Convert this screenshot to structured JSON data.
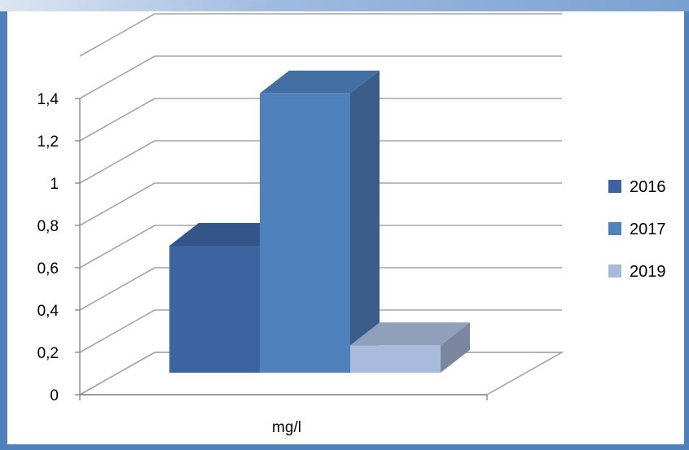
{
  "chart_data": {
    "type": "bar",
    "style": "3d-column",
    "categories": [
      "mg/l"
    ],
    "series": [
      {
        "name": "2016",
        "values": [
          0.6
        ],
        "color": "#3d64a0"
      },
      {
        "name": "2017",
        "values": [
          1.32
        ],
        "color": "#4f81bd"
      },
      {
        "name": "2019",
        "values": [
          0.13
        ],
        "color": "#a9bbdc"
      }
    ],
    "xlabel": "mg/l",
    "ylabel": "",
    "ylim": [
      0,
      1.4
    ],
    "yticks": [
      "0",
      "0,2",
      "0,4",
      "0,6",
      "0,8",
      "1",
      "1,2",
      "1,4"
    ],
    "grid": true,
    "legend": "right"
  },
  "colors": {
    "frame": "#4f81bd",
    "gridline": "#a6a6a6"
  }
}
